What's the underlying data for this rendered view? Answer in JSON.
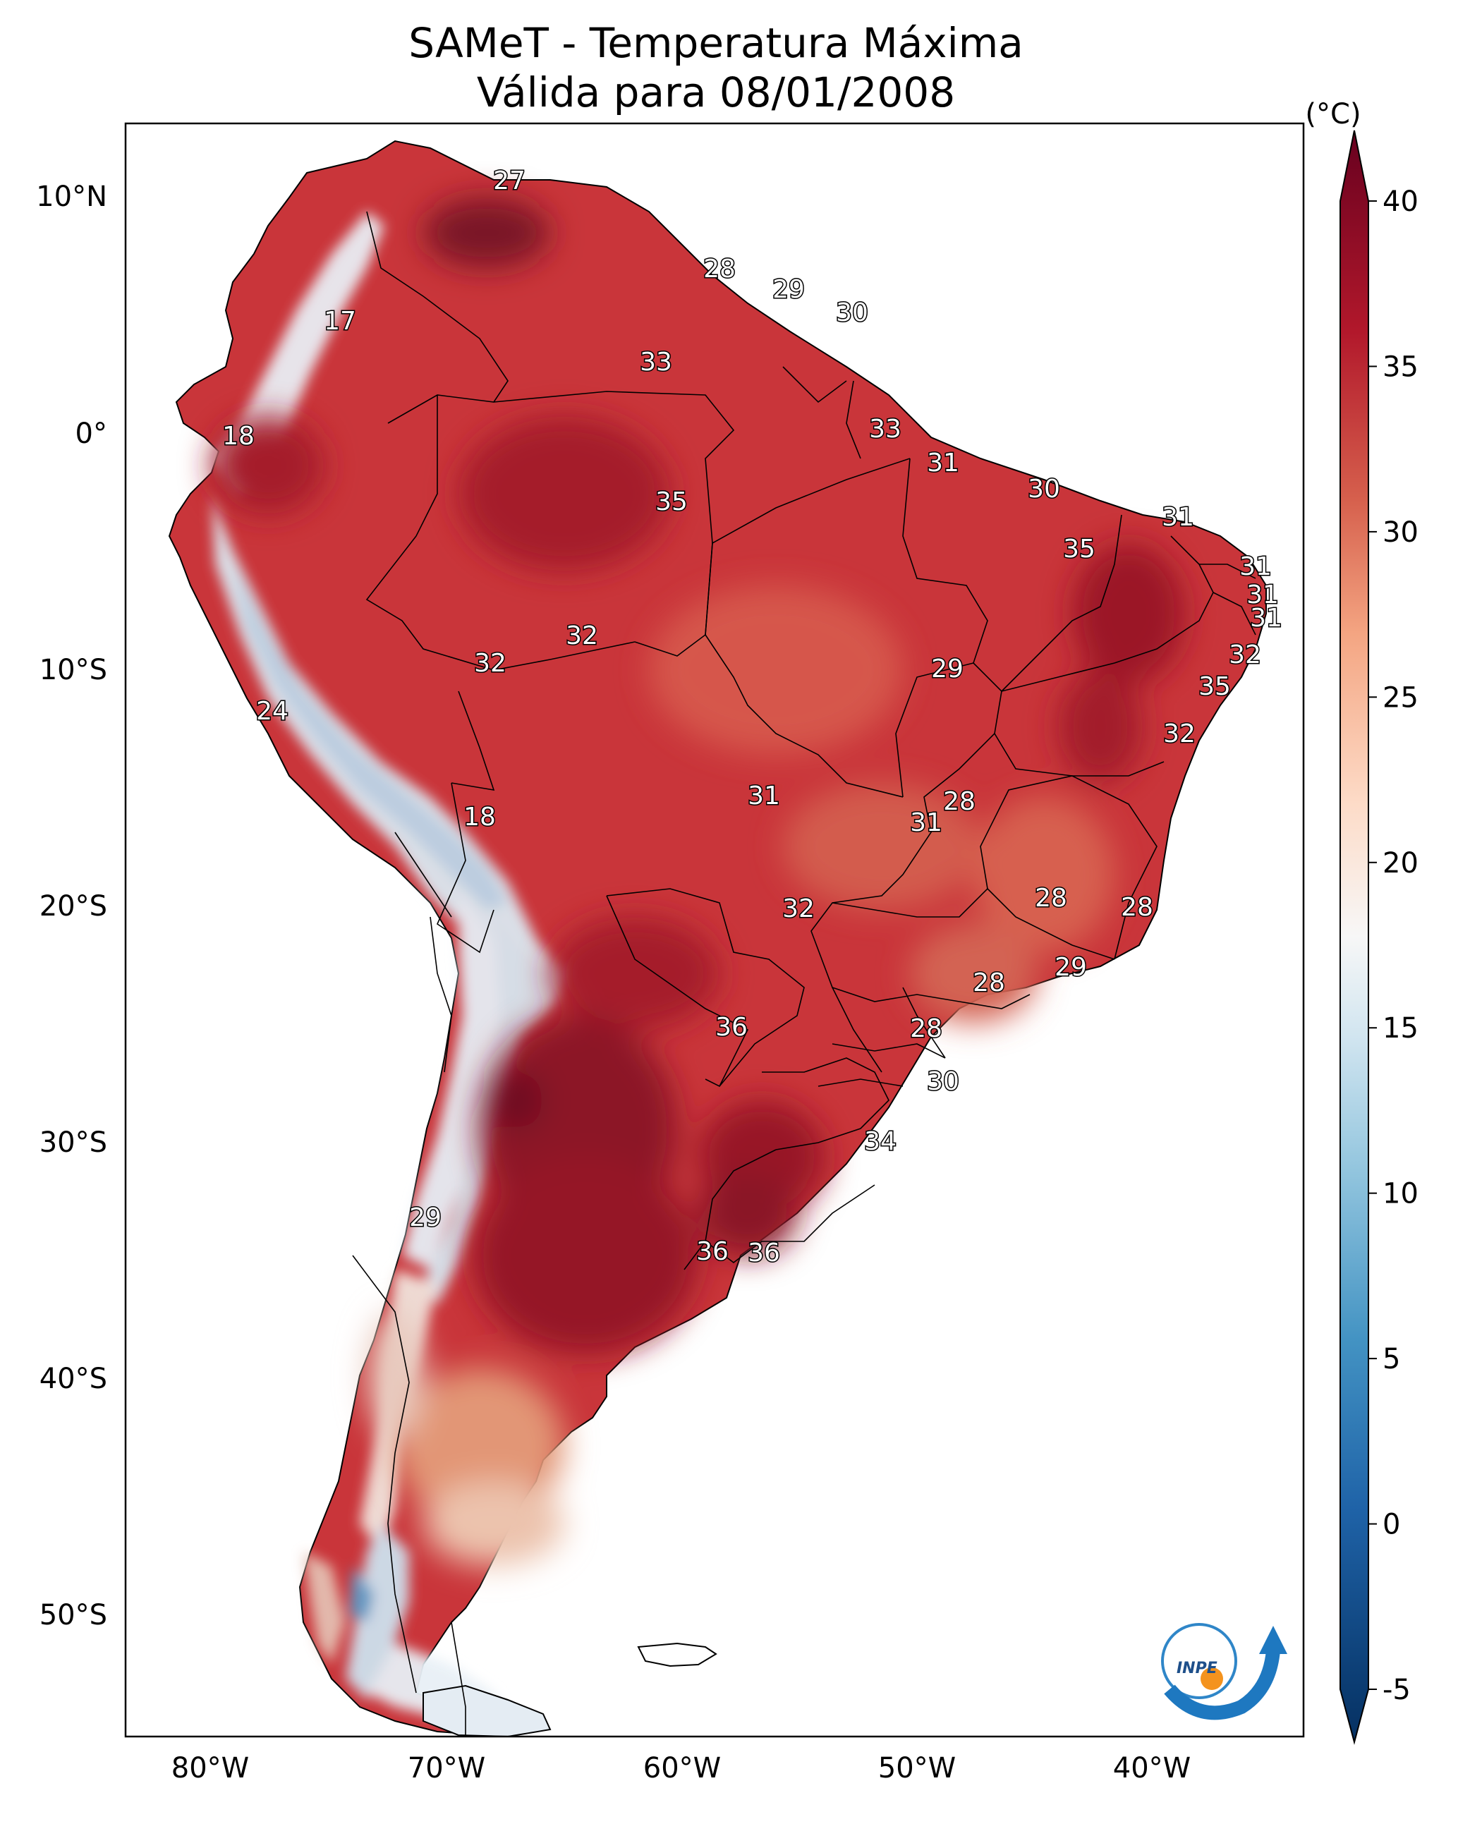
{
  "title_line1": "SAMeT - Temperatura Máxima",
  "title_line2": "Válida para 08/01/2008",
  "colorbar": {
    "unit": "(°C)",
    "ticks": [
      "40",
      "35",
      "30",
      "25",
      "20",
      "15",
      "10",
      "5",
      "0",
      "-5"
    ],
    "range": [
      -7,
      41
    ],
    "stops": [
      {
        "v": -7,
        "c": "#053061"
      },
      {
        "v": 0,
        "c": "#1f63a8"
      },
      {
        "v": 5,
        "c": "#4393c3"
      },
      {
        "v": 10,
        "c": "#92c5de"
      },
      {
        "v": 14,
        "c": "#d1e5f0"
      },
      {
        "v": 17,
        "c": "#f7f7f7"
      },
      {
        "v": 21,
        "c": "#fddbc7"
      },
      {
        "v": 26,
        "c": "#f4a582"
      },
      {
        "v": 30,
        "c": "#d6604d"
      },
      {
        "v": 35,
        "c": "#b2182b"
      },
      {
        "v": 41,
        "c": "#67001f"
      }
    ]
  },
  "axes": {
    "lon_labels": [
      "80°W",
      "70°W",
      "60°W",
      "50°W",
      "40°W"
    ],
    "lat_labels": [
      "10°N",
      "0°",
      "10°S",
      "20°S",
      "30°S",
      "40°S",
      "50°S"
    ]
  },
  "city_values": [
    "27",
    "17",
    "28",
    "29",
    "30",
    "33",
    "18",
    "33",
    "31",
    "30",
    "35",
    "31",
    "35",
    "31",
    "31",
    "31",
    "32",
    "32",
    "29",
    "32",
    "35",
    "24",
    "32",
    "18",
    "31",
    "28",
    "31",
    "28",
    "32",
    "28",
    "29",
    "28",
    "36",
    "28",
    "30",
    "34",
    "29",
    "36",
    "36"
  ],
  "logo_text": "INPE"
}
